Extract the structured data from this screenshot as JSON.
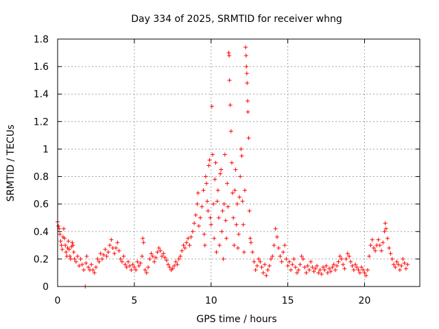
{
  "chart_data": {
    "type": "scatter",
    "title": "Day 334 of 2025, SRMTID for receiver whng",
    "xlabel": "GPS time / hours",
    "ylabel": "SRMTID / TECUs",
    "xlim": [
      0,
      23.6
    ],
    "ylim": [
      0,
      1.8
    ],
    "xticks": [
      0,
      5,
      10,
      15,
      20
    ],
    "xtick_labels": [
      "0",
      "5",
      "10",
      "15",
      "20"
    ],
    "yticks": [
      0,
      0.2,
      0.4,
      0.6,
      0.8,
      1.0,
      1.2,
      1.4,
      1.6,
      1.8
    ],
    "ytick_labels": [
      "0",
      "0.2",
      "0.4",
      "0.6",
      "0.8",
      "1",
      "1.2",
      "1.4",
      "1.6",
      "1.8"
    ],
    "grid": true,
    "marker": "+",
    "color": "#ff0000",
    "series": [
      {
        "name": "SRMTID",
        "points": [
          [
            0.0,
            0.47
          ],
          [
            0.05,
            0.44
          ],
          [
            0.1,
            0.42
          ],
          [
            0.15,
            0.38
          ],
          [
            0.2,
            0.33
          ],
          [
            0.25,
            0.3
          ],
          [
            0.3,
            0.27
          ],
          [
            0.35,
            0.36
          ],
          [
            0.4,
            0.42
          ],
          [
            0.45,
            0.35
          ],
          [
            0.5,
            0.3
          ],
          [
            0.55,
            0.25
          ],
          [
            0.6,
            0.22
          ],
          [
            0.65,
            0.28
          ],
          [
            0.7,
            0.33
          ],
          [
            0.75,
            0.27
          ],
          [
            0.8,
            0.22
          ],
          [
            0.85,
            0.2
          ],
          [
            0.9,
            0.29
          ],
          [
            0.95,
            0.32
          ],
          [
            1.0,
            0.3
          ],
          [
            1.05,
            0.25
          ],
          [
            1.1,
            0.2
          ],
          [
            1.2,
            0.18
          ],
          [
            1.3,
            0.22
          ],
          [
            1.4,
            0.15
          ],
          [
            1.5,
            0.2
          ],
          [
            1.6,
            0.16
          ],
          [
            1.7,
            0.12
          ],
          [
            1.8,
            0.0
          ],
          [
            1.85,
            0.17
          ],
          [
            1.9,
            0.22
          ],
          [
            2.0,
            0.14
          ],
          [
            2.1,
            0.12
          ],
          [
            2.2,
            0.16
          ],
          [
            2.3,
            0.12
          ],
          [
            2.4,
            0.1
          ],
          [
            2.5,
            0.14
          ],
          [
            2.6,
            0.2
          ],
          [
            2.7,
            0.18
          ],
          [
            2.8,
            0.24
          ],
          [
            2.9,
            0.2
          ],
          [
            3.0,
            0.23
          ],
          [
            3.1,
            0.27
          ],
          [
            3.2,
            0.22
          ],
          [
            3.3,
            0.25
          ],
          [
            3.4,
            0.3
          ],
          [
            3.5,
            0.34
          ],
          [
            3.6,
            0.28
          ],
          [
            3.7,
            0.24
          ],
          [
            3.8,
            0.28
          ],
          [
            3.9,
            0.32
          ],
          [
            4.0,
            0.26
          ],
          [
            4.1,
            0.2
          ],
          [
            4.2,
            0.18
          ],
          [
            4.3,
            0.22
          ],
          [
            4.4,
            0.16
          ],
          [
            4.5,
            0.14
          ],
          [
            4.6,
            0.18
          ],
          [
            4.7,
            0.15
          ],
          [
            4.8,
            0.12
          ],
          [
            4.9,
            0.16
          ],
          [
            5.0,
            0.14
          ],
          [
            5.1,
            0.12
          ],
          [
            5.2,
            0.18
          ],
          [
            5.3,
            0.15
          ],
          [
            5.4,
            0.17
          ],
          [
            5.5,
            0.22
          ],
          [
            5.55,
            0.35
          ],
          [
            5.6,
            0.32
          ],
          [
            5.7,
            0.12
          ],
          [
            5.8,
            0.1
          ],
          [
            5.9,
            0.14
          ],
          [
            6.0,
            0.2
          ],
          [
            6.1,
            0.24
          ],
          [
            6.2,
            0.22
          ],
          [
            6.3,
            0.18
          ],
          [
            6.4,
            0.21
          ],
          [
            6.5,
            0.25
          ],
          [
            6.6,
            0.28
          ],
          [
            6.7,
            0.26
          ],
          [
            6.8,
            0.22
          ],
          [
            6.9,
            0.24
          ],
          [
            7.0,
            0.21
          ],
          [
            7.1,
            0.19
          ],
          [
            7.2,
            0.16
          ],
          [
            7.3,
            0.14
          ],
          [
            7.4,
            0.12
          ],
          [
            7.5,
            0.13
          ],
          [
            7.6,
            0.15
          ],
          [
            7.7,
            0.18
          ],
          [
            7.8,
            0.16
          ],
          [
            7.9,
            0.2
          ],
          [
            8.0,
            0.22
          ],
          [
            8.1,
            0.26
          ],
          [
            8.2,
            0.3
          ],
          [
            8.3,
            0.28
          ],
          [
            8.4,
            0.32
          ],
          [
            8.5,
            0.35
          ],
          [
            8.6,
            0.3
          ],
          [
            8.7,
            0.36
          ],
          [
            8.8,
            0.4
          ],
          [
            8.9,
            0.46
          ],
          [
            9.0,
            0.52
          ],
          [
            9.1,
            0.6
          ],
          [
            9.15,
            0.68
          ],
          [
            9.2,
            0.44
          ],
          [
            9.3,
            0.5
          ],
          [
            9.4,
            0.58
          ],
          [
            9.5,
            0.7
          ],
          [
            9.55,
            0.38
          ],
          [
            9.6,
            0.3
          ],
          [
            9.65,
            0.8
          ],
          [
            9.7,
            0.75
          ],
          [
            9.75,
            0.62
          ],
          [
            9.8,
            0.55
          ],
          [
            9.85,
            0.88
          ],
          [
            9.9,
            0.92
          ],
          [
            9.95,
            0.5
          ],
          [
            10.0,
            0.45
          ],
          [
            10.05,
            1.31
          ],
          [
            10.1,
            0.96
          ],
          [
            10.15,
            0.6
          ],
          [
            10.2,
            0.35
          ],
          [
            10.25,
            0.78
          ],
          [
            10.3,
            0.9
          ],
          [
            10.35,
            0.25
          ],
          [
            10.4,
            0.62
          ],
          [
            10.45,
            0.7
          ],
          [
            10.5,
            0.5
          ],
          [
            10.55,
            0.3
          ],
          [
            10.6,
            0.82
          ],
          [
            10.65,
            0.85
          ],
          [
            10.7,
            0.4
          ],
          [
            10.75,
            0.55
          ],
          [
            10.8,
            0.2
          ],
          [
            10.85,
            0.6
          ],
          [
            10.9,
            0.96
          ],
          [
            10.95,
            0.48
          ],
          [
            11.0,
            0.35
          ],
          [
            11.05,
            0.75
          ],
          [
            11.1,
            0.58
          ],
          [
            11.15,
            1.7
          ],
          [
            11.18,
            1.68
          ],
          [
            11.2,
            1.5
          ],
          [
            11.25,
            1.32
          ],
          [
            11.3,
            1.13
          ],
          [
            11.35,
            0.9
          ],
          [
            11.4,
            0.68
          ],
          [
            11.45,
            0.5
          ],
          [
            11.5,
            0.3
          ],
          [
            11.55,
            0.7
          ],
          [
            11.6,
            0.85
          ],
          [
            11.65,
            0.45
          ],
          [
            11.7,
            0.6
          ],
          [
            11.75,
            0.28
          ],
          [
            11.8,
            0.38
          ],
          [
            11.85,
            0.65
          ],
          [
            11.9,
            0.8
          ],
          [
            11.95,
            1.0
          ],
          [
            12.0,
            0.95
          ],
          [
            12.05,
            0.62
          ],
          [
            12.1,
            0.45
          ],
          [
            12.15,
            0.25
          ],
          [
            12.2,
            0.7
          ],
          [
            12.25,
            1.74
          ],
          [
            12.28,
            1.68
          ],
          [
            12.3,
            1.6
          ],
          [
            12.33,
            1.55
          ],
          [
            12.35,
            1.48
          ],
          [
            12.38,
            1.35
          ],
          [
            12.4,
            1.27
          ],
          [
            12.45,
            1.08
          ],
          [
            12.5,
            0.55
          ],
          [
            12.55,
            0.35
          ],
          [
            12.6,
            0.32
          ],
          [
            12.7,
            0.25
          ],
          [
            12.8,
            0.18
          ],
          [
            12.9,
            0.12
          ],
          [
            13.0,
            0.15
          ],
          [
            13.1,
            0.2
          ],
          [
            13.2,
            0.18
          ],
          [
            13.3,
            0.14
          ],
          [
            13.4,
            0.1
          ],
          [
            13.5,
            0.16
          ],
          [
            13.6,
            0.08
          ],
          [
            13.7,
            0.12
          ],
          [
            13.8,
            0.15
          ],
          [
            13.9,
            0.2
          ],
          [
            14.0,
            0.22
          ],
          [
            14.1,
            0.3
          ],
          [
            14.2,
            0.42
          ],
          [
            14.3,
            0.36
          ],
          [
            14.4,
            0.28
          ],
          [
            14.5,
            0.22
          ],
          [
            14.6,
            0.18
          ],
          [
            14.7,
            0.25
          ],
          [
            14.8,
            0.3
          ],
          [
            14.9,
            0.2
          ],
          [
            15.0,
            0.15
          ],
          [
            15.1,
            0.18
          ],
          [
            15.2,
            0.12
          ],
          [
            15.3,
            0.16
          ],
          [
            15.4,
            0.2
          ],
          [
            15.5,
            0.14
          ],
          [
            15.6,
            0.1
          ],
          [
            15.7,
            0.12
          ],
          [
            15.8,
            0.16
          ],
          [
            15.9,
            0.22
          ],
          [
            16.0,
            0.2
          ],
          [
            16.1,
            0.14
          ],
          [
            16.2,
            0.1
          ],
          [
            16.3,
            0.15
          ],
          [
            16.4,
            0.12
          ],
          [
            16.5,
            0.18
          ],
          [
            16.6,
            0.14
          ],
          [
            16.7,
            0.11
          ],
          [
            16.8,
            0.13
          ],
          [
            16.9,
            0.15
          ],
          [
            17.0,
            0.1
          ],
          [
            17.1,
            0.12
          ],
          [
            17.2,
            0.09
          ],
          [
            17.3,
            0.14
          ],
          [
            17.4,
            0.12
          ],
          [
            17.5,
            0.15
          ],
          [
            17.6,
            0.1
          ],
          [
            17.7,
            0.13
          ],
          [
            17.8,
            0.11
          ],
          [
            17.9,
            0.14
          ],
          [
            18.0,
            0.16
          ],
          [
            18.1,
            0.12
          ],
          [
            18.2,
            0.15
          ],
          [
            18.3,
            0.18
          ],
          [
            18.4,
            0.22
          ],
          [
            18.5,
            0.2
          ],
          [
            18.6,
            0.16
          ],
          [
            18.7,
            0.13
          ],
          [
            18.8,
            0.2
          ],
          [
            18.9,
            0.24
          ],
          [
            19.0,
            0.22
          ],
          [
            19.1,
            0.18
          ],
          [
            19.2,
            0.15
          ],
          [
            19.3,
            0.12
          ],
          [
            19.4,
            0.16
          ],
          [
            19.5,
            0.14
          ],
          [
            19.6,
            0.12
          ],
          [
            19.7,
            0.1
          ],
          [
            19.8,
            0.14
          ],
          [
            19.9,
            0.12
          ],
          [
            20.0,
            0.1
          ],
          [
            20.1,
            0.08
          ],
          [
            20.2,
            0.12
          ],
          [
            20.3,
            0.22
          ],
          [
            20.4,
            0.3
          ],
          [
            20.5,
            0.34
          ],
          [
            20.6,
            0.28
          ],
          [
            20.7,
            0.26
          ],
          [
            20.8,
            0.3
          ],
          [
            20.9,
            0.34
          ],
          [
            21.0,
            0.3
          ],
          [
            21.1,
            0.26
          ],
          [
            21.2,
            0.32
          ],
          [
            21.3,
            0.4
          ],
          [
            21.35,
            0.46
          ],
          [
            21.4,
            0.42
          ],
          [
            21.5,
            0.35
          ],
          [
            21.6,
            0.28
          ],
          [
            21.7,
            0.24
          ],
          [
            21.8,
            0.2
          ],
          [
            21.9,
            0.16
          ],
          [
            22.0,
            0.14
          ],
          [
            22.1,
            0.18
          ],
          [
            22.2,
            0.16
          ],
          [
            22.3,
            0.12
          ],
          [
            22.4,
            0.15
          ],
          [
            22.5,
            0.2
          ],
          [
            22.6,
            0.17
          ],
          [
            22.7,
            0.13
          ],
          [
            22.8,
            0.16
          ]
        ]
      }
    ]
  }
}
